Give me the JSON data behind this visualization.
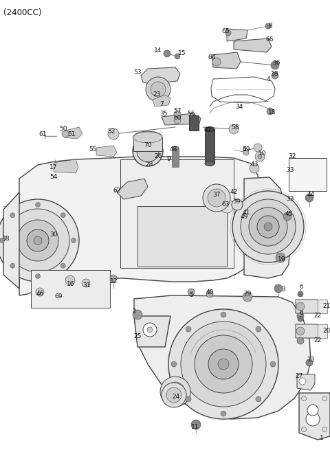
{
  "title": "(2400CC)",
  "bg_color": "#ffffff",
  "line_color": "#444444",
  "text_color": "#111111",
  "label_fontsize": 6.5,
  "title_fontsize": 8.5,
  "fig_width": 4.8,
  "fig_height": 6.55,
  "dpi": 100
}
